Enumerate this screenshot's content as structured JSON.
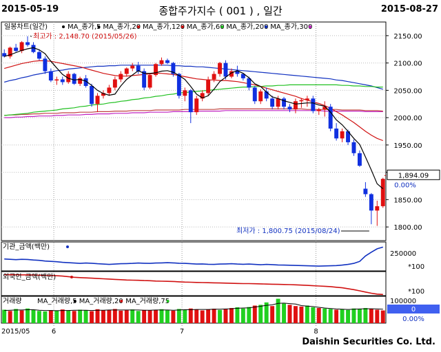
{
  "header": {
    "start_date": "2015-05-19",
    "title": "종합주가지수 ( 001 ) , 일간",
    "end_date": "2015-08-27"
  },
  "footer": {
    "brand": "Daishin Securities Co. Ltd."
  },
  "chart_data": {
    "type": "candlestick",
    "legend": [
      {
        "label": "일봉차트(일간)",
        "color": "#000000"
      },
      {
        "label": "MA_종가,5",
        "color": "#000000"
      },
      {
        "label": "MA_종가,20",
        "color": "#d01010"
      },
      {
        "label": "MA_종가,120",
        "color": "#d01010"
      },
      {
        "label": "MA_종가,60",
        "color": "#20c020"
      },
      {
        "label": "MA_종가,200",
        "color": "#1030c0"
      },
      {
        "label": "MA_종가,300",
        "color": "#c020c0"
      }
    ],
    "colors": {
      "up": "#e01010",
      "down": "#1030e0",
      "ma5": "#000000",
      "ma20": "#d01010",
      "ma60": "#20c020",
      "ma120": "#c04040",
      "ma200": "#1030c0",
      "ma300": "#c020c0"
    },
    "ylim": [
      1775,
      2175
    ],
    "yticks": [
      "2150.00",
      "2100.00",
      "2050.00",
      "2000.00",
      "1950.00",
      "1900.00",
      "1850.00",
      "1800.00"
    ],
    "ytick_values": [
      2150,
      2100,
      2050,
      2000,
      1950,
      1900,
      1850,
      1800
    ],
    "current_value": "1,894.09",
    "current_change": "0.00%",
    "high_note": "최고가 : 2,148.70 (2015/05/26)",
    "low_note": "최저가 : 1,800.75 (2015/08/24)",
    "x_labels": [
      {
        "text": "2015/05",
        "index": 0
      },
      {
        "text": "6",
        "index": 9
      },
      {
        "text": "7",
        "index": 31
      },
      {
        "text": "8",
        "index": 54
      }
    ],
    "candles": [
      [
        2118,
        2125,
        2110,
        2112
      ],
      [
        2112,
        2130,
        2108,
        2128
      ],
      [
        2128,
        2135,
        2120,
        2122
      ],
      [
        2122,
        2140,
        2118,
        2138
      ],
      [
        2138,
        2149,
        2130,
        2133
      ],
      [
        2133,
        2138,
        2118,
        2120
      ],
      [
        2120,
        2125,
        2105,
        2108
      ],
      [
        2108,
        2112,
        2080,
        2085
      ],
      [
        2085,
        2090,
        2065,
        2068
      ],
      [
        2068,
        2075,
        2060,
        2070
      ],
      [
        2070,
        2075,
        2060,
        2065
      ],
      [
        2065,
        2085,
        2062,
        2080
      ],
      [
        2080,
        2082,
        2060,
        2062
      ],
      [
        2062,
        2075,
        2058,
        2072
      ],
      [
        2072,
        2078,
        2055,
        2058
      ],
      [
        2058,
        2062,
        2020,
        2025
      ],
      [
        2025,
        2045,
        2010,
        2040
      ],
      [
        2040,
        2050,
        2035,
        2045
      ],
      [
        2045,
        2060,
        2040,
        2055
      ],
      [
        2055,
        2075,
        2050,
        2070
      ],
      [
        2070,
        2085,
        2065,
        2080
      ],
      [
        2080,
        2092,
        2075,
        2090
      ],
      [
        2090,
        2100,
        2085,
        2095
      ],
      [
        2095,
        2102,
        2080,
        2085
      ],
      [
        2085,
        2090,
        2050,
        2055
      ],
      [
        2055,
        2080,
        2052,
        2078
      ],
      [
        2078,
        2100,
        2075,
        2098
      ],
      [
        2098,
        2110,
        2095,
        2105
      ],
      [
        2105,
        2108,
        2098,
        2100
      ],
      [
        2100,
        2102,
        2075,
        2080
      ],
      [
        2080,
        2082,
        2035,
        2040
      ],
      [
        2040,
        2055,
        2030,
        2050
      ],
      [
        2050,
        2052,
        1990,
        2010
      ],
      [
        2010,
        2040,
        2005,
        2035
      ],
      [
        2035,
        2050,
        2030,
        2045
      ],
      [
        2045,
        2075,
        2040,
        2070
      ],
      [
        2070,
        2085,
        2065,
        2080
      ],
      [
        2080,
        2102,
        2075,
        2100
      ],
      [
        2100,
        2105,
        2070,
        2075
      ],
      [
        2075,
        2090,
        2072,
        2085
      ],
      [
        2085,
        2095,
        2075,
        2080
      ],
      [
        2080,
        2082,
        2068,
        2072
      ],
      [
        2072,
        2075,
        2050,
        2055
      ],
      [
        2055,
        2058,
        2025,
        2030
      ],
      [
        2030,
        2052,
        2025,
        2048
      ],
      [
        2048,
        2055,
        2030,
        2035
      ],
      [
        2035,
        2040,
        2015,
        2020
      ],
      [
        2020,
        2040,
        2015,
        2035
      ],
      [
        2035,
        2038,
        2015,
        2020
      ],
      [
        2020,
        2025,
        2010,
        2015
      ],
      [
        2015,
        2035,
        2008,
        2030
      ],
      [
        2030,
        2036,
        2018,
        2032
      ],
      [
        2032,
        2040,
        2020,
        2035
      ],
      [
        2035,
        2040,
        2008,
        2012
      ],
      [
        2012,
        2018,
        2005,
        2015
      ],
      [
        2015,
        2030,
        2002,
        2020
      ],
      [
        2020,
        2025,
        1975,
        1980
      ],
      [
        1980,
        1990,
        1958,
        1962
      ],
      [
        1962,
        1980,
        1955,
        1975
      ],
      [
        1975,
        1978,
        1950,
        1955
      ],
      [
        1955,
        1960,
        1930,
        1935
      ],
      [
        1935,
        1940,
        1910,
        1912
      ],
      [
        1870,
        1882,
        1855,
        1860
      ],
      [
        1860,
        1862,
        1805,
        1830
      ],
      [
        1830,
        1848,
        1802,
        1838
      ],
      [
        1838,
        1890,
        1835,
        1888
      ]
    ],
    "ma5": [
      2112,
      2115,
      2119,
      2123,
      2126,
      2128,
      2124,
      2117,
      2103,
      2091,
      2079,
      2072,
      2069,
      2070,
      2067,
      2059,
      2050,
      2044,
      2041,
      2043,
      2058,
      2070,
      2078,
      2086,
      2081,
      2081,
      2082,
      2085,
      2086,
      2083,
      2077,
      2070,
      2057,
      2043,
      2036,
      2040,
      2052,
      2066,
      2074,
      2082,
      2086,
      2081,
      2073,
      2062,
      2057,
      2047,
      2038,
      2035,
      2031,
      2028,
      2025,
      2026,
      2027,
      2027,
      2023,
      2021,
      2010,
      1996,
      1987,
      1975,
      1962,
      1951,
      1928,
      1904,
      1879,
      1870
    ],
    "ma20": [
      2090,
      2093,
      2096,
      2099,
      2101,
      2103,
      2104,
      2104,
      2103,
      2101,
      2099,
      2097,
      2095,
      2093,
      2090,
      2087,
      2084,
      2081,
      2079,
      2077,
      2076,
      2076,
      2077,
      2078,
      2079,
      2080,
      2081,
      2081,
      2080,
      2079,
      2077,
      2075,
      2073,
      2071,
      2070,
      2069,
      2069,
      2068,
      2068,
      2067,
      2066,
      2064,
      2062,
      2060,
      2057,
      2054,
      2051,
      2048,
      2045,
      2042,
      2039,
      2035,
      2032,
      2029,
      2026,
      2022,
      2017,
      2011,
      2005,
      1998,
      1991,
      1983,
      1975,
      1968,
      1962,
      1958
    ],
    "ma60": [
      2004,
      2005,
      2006,
      2007,
      2008,
      2010,
      2011,
      2012,
      2013,
      2014,
      2016,
      2017,
      2018,
      2020,
      2021,
      2023,
      2024,
      2025,
      2027,
      2028,
      2030,
      2031,
      2033,
      2034,
      2036,
      2037,
      2039,
      2040,
      2042,
      2043,
      2045,
      2046,
      2047,
      2048,
      2049,
      2050,
      2051,
      2052,
      2053,
      2054,
      2055,
      2056,
      2056,
      2057,
      2057,
      2058,
      2058,
      2059,
      2059,
      2060,
      2060,
      2060,
      2060,
      2060,
      2060,
      2060,
      2060,
      2060,
      2059,
      2059,
      2058,
      2058,
      2057,
      2057,
      2056,
      2056
    ],
    "ma120": [
      2004,
      2005,
      2005,
      2006,
      2006,
      2007,
      2007,
      2008,
      2008,
      2008,
      2009,
      2009,
      2009,
      2010,
      2010,
      2010,
      2011,
      2011,
      2011,
      2012,
      2012,
      2012,
      2013,
      2013,
      2013,
      2013,
      2014,
      2014,
      2014,
      2014,
      2014,
      2015,
      2015,
      2015,
      2015,
      2015,
      2015,
      2016,
      2016,
      2016,
      2016,
      2016,
      2016,
      2016,
      2016,
      2016,
      2016,
      2016,
      2016,
      2016,
      2016,
      2016,
      2015,
      2015,
      2015,
      2015,
      2015,
      2015,
      2014,
      2014,
      2014,
      2014,
      2013,
      2013,
      2013,
      2012
    ],
    "ma200": [
      2065,
      2068,
      2070,
      2073,
      2075,
      2078,
      2080,
      2082,
      2084,
      2086,
      2087,
      2089,
      2090,
      2091,
      2092,
      2093,
      2094,
      2094,
      2095,
      2095,
      2096,
      2096,
      2096,
      2096,
      2096,
      2096,
      2096,
      2096,
      2096,
      2095,
      2095,
      2094,
      2094,
      2093,
      2093,
      2092,
      2091,
      2090,
      2089,
      2088,
      2087,
      2086,
      2085,
      2084,
      2083,
      2082,
      2081,
      2080,
      2079,
      2078,
      2077,
      2076,
      2075,
      2074,
      2073,
      2072,
      2071,
      2069,
      2068,
      2066,
      2064,
      2062,
      2060,
      2058,
      2055,
      2052
    ],
    "ma300": [
      2000,
      2000,
      2001,
      2001,
      2002,
      2002,
      2003,
      2003,
      2003,
      2004,
      2004,
      2005,
      2005,
      2005,
      2006,
      2006,
      2007,
      2007,
      2007,
      2008,
      2008,
      2008,
      2009,
      2009,
      2009,
      2010,
      2010,
      2010,
      2010,
      2011,
      2011,
      2011,
      2011,
      2012,
      2012,
      2012,
      2012,
      2012,
      2013,
      2013,
      2013,
      2013,
      2013,
      2013,
      2013,
      2013,
      2013,
      2013,
      2013,
      2013,
      2013,
      2013,
      2013,
      2013,
      2013,
      2012,
      2012,
      2012,
      2012,
      2012,
      2012,
      2012,
      2011,
      2011,
      2011,
      2011
    ],
    "panels": {
      "inst": {
        "label": "기관_금액(백만)",
        "color": "#1030c0",
        "tick": "250000",
        "unit": "*100",
        "ylim": [
          -400000,
          450000
        ],
        "values": [
          -50000,
          -60000,
          -70000,
          -60000,
          -65000,
          -80000,
          -90000,
          -110000,
          -120000,
          -130000,
          -150000,
          -160000,
          -170000,
          -180000,
          -170000,
          -175000,
          -190000,
          -200000,
          -210000,
          -200000,
          -190000,
          -185000,
          -180000,
          -170000,
          -175000,
          -180000,
          -170000,
          -165000,
          -160000,
          -165000,
          -175000,
          -180000,
          -190000,
          -200000,
          -195000,
          -205000,
          -210000,
          -200000,
          -195000,
          -190000,
          -200000,
          -205000,
          -200000,
          -210000,
          -220000,
          -210000,
          -215000,
          -225000,
          -230000,
          -235000,
          -240000,
          -245000,
          -250000,
          -255000,
          -260000,
          -255000,
          -250000,
          -245000,
          -230000,
          -210000,
          -180000,
          -120000,
          40000,
          150000,
          250000,
          300000
        ]
      },
      "foreign": {
        "label": "외국인_금액(백만)",
        "color": "#d01010",
        "tick": "*100",
        "ylim": [
          -700000,
          100000
        ],
        "values": [
          0,
          -5000,
          -5000,
          -10000,
          -10000,
          -15000,
          -20000,
          -25000,
          -30000,
          -40000,
          -50000,
          -70000,
          -90000,
          -100000,
          -110000,
          -120000,
          -130000,
          -140000,
          -150000,
          -160000,
          -170000,
          -180000,
          -185000,
          -190000,
          -200000,
          -205000,
          -215000,
          -220000,
          -225000,
          -230000,
          -240000,
          -250000,
          -255000,
          -260000,
          -265000,
          -270000,
          -275000,
          -280000,
          -285000,
          -290000,
          -295000,
          -300000,
          -300000,
          -305000,
          -310000,
          -315000,
          -320000,
          -325000,
          -330000,
          -335000,
          -340000,
          -350000,
          -360000,
          -370000,
          -380000,
          -390000,
          -400000,
          -420000,
          -440000,
          -470000,
          -500000,
          -540000,
          -580000,
          -620000,
          -650000,
          -660000
        ]
      },
      "volume": {
        "label_main": "거래량",
        "ma_labels": [
          "MA_거래량,5",
          "MA_거래량,20",
          "MA_거래량,75"
        ],
        "ma_colors": [
          "#000000",
          "#d01010",
          "#20c020"
        ],
        "tick": "100000",
        "side_val": "0",
        "side_pct": "0.00%",
        "ylim": [
          0,
          110000
        ],
        "values": [
          55000,
          50000,
          58000,
          52000,
          60000,
          54000,
          50000,
          48000,
          53000,
          51000,
          56000,
          52000,
          50000,
          55000,
          53000,
          49000,
          57000,
          52000,
          54000,
          58000,
          51000,
          53000,
          56000,
          50000,
          54000,
          52000,
          55000,
          57000,
          53000,
          51000,
          58000,
          54000,
          60000,
          55000,
          52000,
          56000,
          59000,
          54000,
          57000,
          62000,
          65000,
          60000,
          66000,
          72000,
          75000,
          85000,
          70000,
          100000,
          80000,
          75000,
          70000,
          68000,
          72000,
          65000,
          62000,
          60000,
          58000,
          55000,
          57000,
          54000,
          60000,
          58000,
          62000,
          59000,
          55000,
          52000
        ],
        "up": [
          0,
          1,
          0,
          1,
          0,
          0,
          0,
          0,
          1,
          0,
          1,
          0,
          1,
          0,
          0,
          1,
          1,
          1,
          1,
          1,
          1,
          1,
          0,
          0,
          1,
          1,
          1,
          0,
          0,
          1,
          0,
          0,
          1,
          1,
          1,
          1,
          1,
          0,
          1,
          1,
          0,
          0,
          0,
          1,
          0,
          0,
          1,
          0,
          0,
          1,
          1,
          1,
          0,
          0,
          1,
          0,
          0,
          1,
          0,
          0,
          0,
          0,
          0,
          1,
          1,
          1
        ],
        "ma": [
          52000,
          53000,
          54000,
          54000,
          55000,
          55000,
          53000,
          52000,
          52000,
          51000,
          52000,
          52000,
          53000,
          53000,
          53000,
          52000,
          53000,
          53000,
          54000,
          54000,
          54000,
          54000,
          54000,
          54000,
          53000,
          53000,
          54000,
          54000,
          54000,
          53000,
          54000,
          55000,
          55000,
          56000,
          56000,
          56000,
          57000,
          57000,
          58000,
          59000,
          61000,
          62000,
          63000,
          66000,
          69000,
          73000,
          75000,
          81000,
          82000,
          80000,
          78000,
          72000,
          70000,
          68000,
          65000,
          62000,
          60000,
          58000,
          57000,
          56000,
          57000,
          58000,
          59000,
          59000,
          58000,
          57000
        ]
      }
    }
  }
}
